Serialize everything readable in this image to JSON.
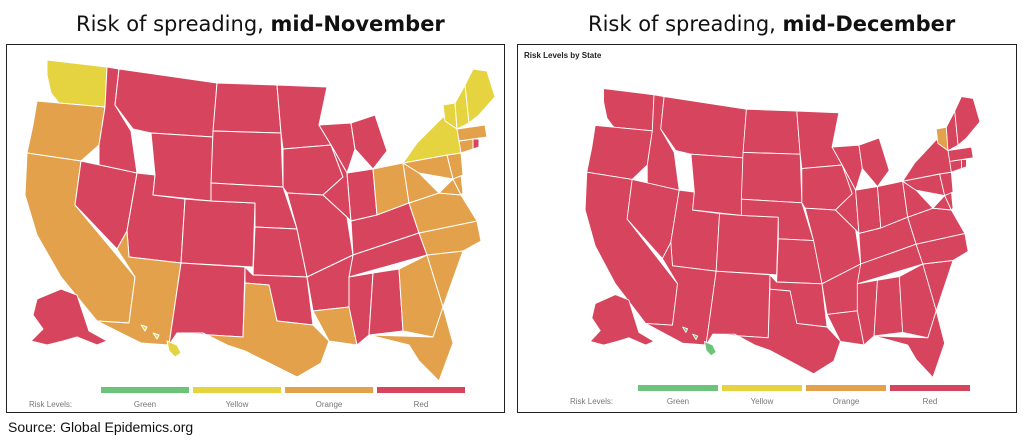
{
  "titles": {
    "left_prefix": "Risk of spreading, ",
    "left_bold": "mid-November",
    "right_prefix": "Risk of spreading, ",
    "right_bold": "mid-December"
  },
  "right_panel_label": "Risk Levels by State",
  "legend": {
    "title": "Risk Levels:",
    "items": [
      {
        "label": "Green",
        "color": "#6cc47a"
      },
      {
        "label": "Yellow",
        "color": "#e5d33f"
      },
      {
        "label": "Orange",
        "color": "#e2a14a"
      },
      {
        "label": "Red",
        "color": "#d6445e"
      }
    ]
  },
  "source": "Source:  Global Epidemics.org",
  "colors": {
    "red": "#d6445e",
    "orange": "#e2a14a",
    "yellow": "#e5d33f",
    "green": "#6cc47a",
    "border": "#ffffff"
  },
  "map_data": {
    "mid_november": {
      "red": [
        "Montana",
        "Idaho",
        "Nevada",
        "Utah",
        "Wyoming",
        "Colorado",
        "New Mexico",
        "North Dakota",
        "South Dakota",
        "Nebraska",
        "Kansas",
        "Oklahoma",
        "Minnesota",
        "Iowa",
        "Missouri",
        "Arkansas",
        "Wisconsin",
        "Illinois",
        "Michigan",
        "Indiana",
        "Kentucky",
        "Tennessee",
        "Mississippi",
        "Alabama",
        "Alaska",
        "Rhode Island"
      ],
      "orange": [
        "Oregon",
        "California",
        "Arizona",
        "Texas",
        "Louisiana",
        "Ohio",
        "West Virginia",
        "Pennsylvania",
        "Virginia",
        "North Carolina",
        "South Carolina",
        "Georgia",
        "Florida",
        "New Jersey",
        "Maryland",
        "Delaware",
        "Massachusetts",
        "Connecticut"
      ],
      "yellow": [
        "Washington",
        "New York",
        "Vermont",
        "New Hampshire",
        "Maine",
        "Hawaii"
      ]
    },
    "mid_december": {
      "red": [
        "Washington",
        "Oregon",
        "California",
        "Nevada",
        "Idaho",
        "Montana",
        "Wyoming",
        "Utah",
        "Arizona",
        "Colorado",
        "New Mexico",
        "North Dakota",
        "South Dakota",
        "Nebraska",
        "Kansas",
        "Oklahoma",
        "Texas",
        "Minnesota",
        "Iowa",
        "Missouri",
        "Arkansas",
        "Louisiana",
        "Wisconsin",
        "Illinois",
        "Michigan",
        "Indiana",
        "Ohio",
        "Kentucky",
        "Tennessee",
        "Mississippi",
        "Alabama",
        "Georgia",
        "Florida",
        "South Carolina",
        "North Carolina",
        "Virginia",
        "West Virginia",
        "Pennsylvania",
        "New York",
        "New Jersey",
        "Delaware",
        "Maryland",
        "Connecticut",
        "Rhode Island",
        "Massachusetts",
        "New Hampshire",
        "Maine",
        "Alaska"
      ],
      "orange": [
        "Vermont"
      ],
      "green": [
        "Hawaii"
      ]
    }
  }
}
